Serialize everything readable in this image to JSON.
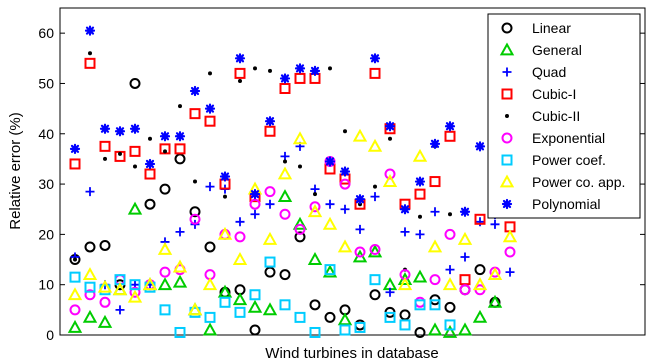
{
  "chart_data": {
    "type": "scatter",
    "title": "",
    "xlabel": "Wind turbines in database",
    "ylabel": "Relative error (%)",
    "ylim": [
      0,
      65
    ],
    "yticks": [
      0,
      10,
      20,
      30,
      40,
      50,
      60
    ],
    "xlim": [
      0,
      39
    ],
    "xticks_shown": false,
    "grid": false,
    "legend_position": "top-right",
    "x": [
      1,
      2,
      3,
      4,
      5,
      6,
      7,
      8,
      9,
      10,
      11,
      12,
      13,
      14,
      15,
      16,
      17,
      18,
      19,
      20,
      21,
      22,
      23,
      24,
      25,
      26,
      27,
      28,
      29,
      30,
      31,
      32,
      33
    ],
    "series": [
      {
        "name": "Linear",
        "marker": "circle",
        "color": "#000000",
        "values": [
          15,
          17.5,
          17.8,
          10,
          50,
          26,
          29,
          35,
          24.5,
          17.5,
          8.5,
          9,
          1,
          12.5,
          12,
          19.5,
          6,
          3.5,
          5,
          2,
          8,
          4.5,
          4,
          0.5,
          7,
          5.5,
          9,
          13,
          6.5
        ]
      },
      {
        "name": "General",
        "marker": "triangle",
        "color": "#00cc00",
        "values": [
          1.5,
          3.5,
          2.5,
          9,
          25,
          10,
          10,
          10.5,
          5,
          1,
          8.5,
          7,
          5.5,
          5,
          27.5,
          22,
          15,
          12.5,
          3,
          15.5,
          16.5,
          10,
          11,
          11.5,
          1,
          0.5,
          1,
          3.5,
          6.5
        ]
      },
      {
        "name": "Quad",
        "marker": "plus",
        "color": "#0000ff",
        "values": [
          15.5,
          28.5,
          10,
          5,
          10,
          10,
          18.5,
          20.5,
          22,
          29.5,
          29,
          22.5,
          24,
          26,
          35.5,
          37.5,
          29,
          26,
          25,
          21,
          27.5,
          8.5,
          20.5,
          20,
          24.5,
          13,
          15.5,
          22.5,
          22,
          12.5
        ]
      },
      {
        "name": "Cubic-I",
        "marker": "square",
        "color": "#ff0000",
        "values": [
          34,
          54,
          37.5,
          35.5,
          36.5,
          32,
          37,
          37,
          44,
          42.5,
          30,
          52,
          27.5,
          40.5,
          49,
          51,
          51,
          33,
          31,
          26,
          52,
          41,
          26,
          28,
          30.5,
          39.5,
          11,
          23,
          36,
          21.5,
          25.5
        ]
      },
      {
        "name": "Cubic-II",
        "marker": "dot",
        "color": "#000000",
        "values": [
          15,
          56,
          35,
          36,
          33.5,
          39,
          36.5,
          45.5,
          30.5,
          52,
          27.5,
          50.5,
          53,
          52.5,
          34.5,
          33.5,
          28,
          53,
          40.5,
          26,
          29.5,
          39,
          13,
          23.5,
          37.5,
          24
        ]
      },
      {
        "name": "Exponential",
        "marker": "circle",
        "color": "#ff00ff",
        "values": [
          5,
          8,
          6.5,
          11,
          8.5,
          10,
          12.5,
          13,
          23,
          12,
          20,
          19.5,
          26,
          28.5,
          24,
          21,
          25.5,
          34.5,
          30,
          16.5,
          17,
          32,
          12,
          6.5,
          11,
          20,
          9,
          9,
          12.5,
          16.5
        ]
      },
      {
        "name": "Power coef.",
        "marker": "square",
        "color": "#00ccff",
        "values": [
          11.5,
          9.5,
          9,
          11,
          10,
          9.5,
          5,
          0.5,
          4.5,
          3.5,
          6.5,
          4.5,
          8,
          14.5,
          6,
          3.5,
          0.5,
          13,
          1,
          1.5,
          11,
          3.5,
          2,
          6,
          6,
          2
        ]
      },
      {
        "name": "Power co. app.",
        "marker": "triangle",
        "color": "#ffff00",
        "values": [
          8,
          12,
          9.5,
          9,
          7.5,
          10,
          17,
          13.5,
          5,
          10,
          20,
          15,
          29,
          19,
          32,
          39,
          24.5,
          22,
          17.5,
          39.5,
          37.5,
          30.5,
          10,
          35.5,
          17.5,
          10,
          19,
          10,
          12,
          19.5
        ]
      },
      {
        "name": "Polynomial",
        "marker": "star",
        "color": "#0000ff",
        "values": [
          37,
          60.5,
          41,
          40.5,
          41,
          34,
          39.5,
          39.5,
          48.5,
          45,
          31.5,
          55,
          28,
          42.5,
          51,
          53,
          52.5,
          34.5,
          32.5,
          27,
          55,
          41.5,
          25,
          30.5,
          38,
          41.5,
          24.5,
          37.5,
          24,
          26
        ]
      }
    ]
  }
}
